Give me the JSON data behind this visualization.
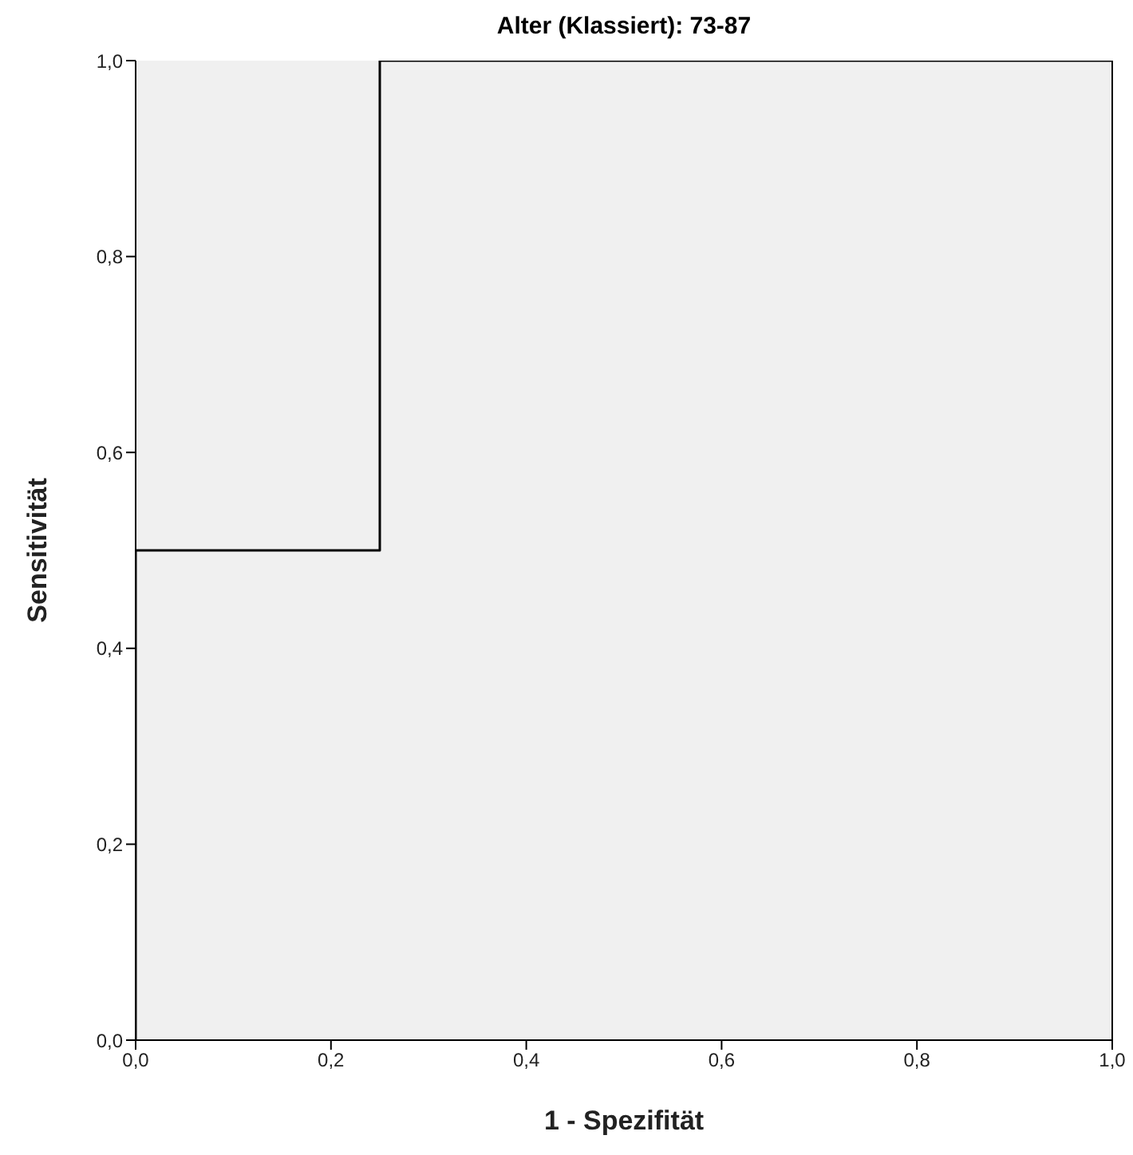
{
  "chart_data": {
    "type": "line",
    "title": "Alter (Klassiert): 73-87",
    "xlabel": "1 - Spezifität",
    "ylabel": "Sensitivität",
    "x": [
      0,
      0,
      0.25,
      0.25,
      1
    ],
    "series": [
      {
        "color": "#000000",
        "values": [
          0,
          0.5,
          0.5,
          1,
          1
        ]
      }
    ],
    "xlim": [
      0,
      1
    ],
    "ylim": [
      0,
      1
    ],
    "xticks": [
      {
        "value": 0,
        "label": "0,0"
      },
      {
        "value": 0.2,
        "label": "0,2"
      },
      {
        "value": 0.4,
        "label": "0,4"
      },
      {
        "value": 0.6,
        "label": "0,6"
      },
      {
        "value": 0.8,
        "label": "0,8"
      },
      {
        "value": 1,
        "label": "1,0"
      }
    ],
    "yticks": [
      {
        "value": 0,
        "label": "0,0"
      },
      {
        "value": 0.2,
        "label": "0,2"
      },
      {
        "value": 0.4,
        "label": "0,4"
      },
      {
        "value": 0.6,
        "label": "0,6"
      },
      {
        "value": 0.8,
        "label": "0,8"
      },
      {
        "value": 1,
        "label": "1,0"
      }
    ],
    "grid": false,
    "legend": false,
    "marker": "none",
    "line_style": "solid"
  }
}
